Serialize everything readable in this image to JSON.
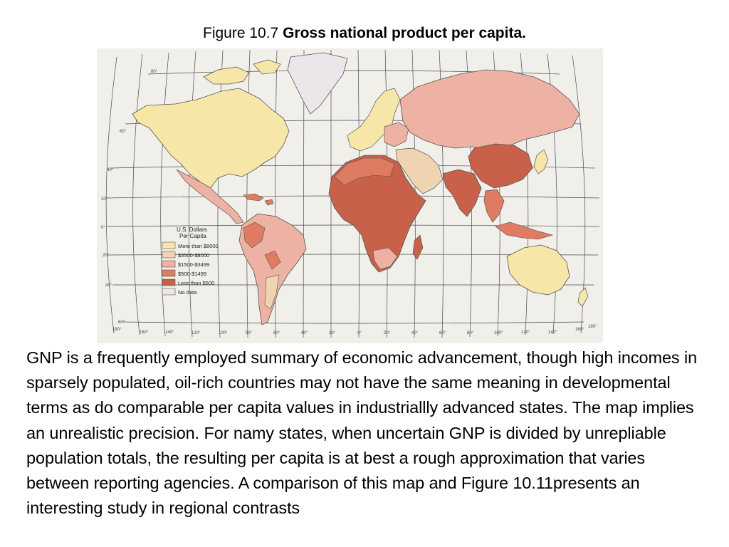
{
  "figure": {
    "prefix": "Figure 10.7",
    "title": "Gross national product per capita."
  },
  "map": {
    "legend": {
      "title_line1": "U.S. Dollars",
      "title_line2": "Per Capita",
      "items": [
        {
          "label": "More than $8000",
          "color": "#f6e6a8"
        },
        {
          "label": "$3500-$8000",
          "color": "#f0d3b0"
        },
        {
          "label": "$1500-$3499",
          "color": "#eeb2a4"
        },
        {
          "label": "$500-$1499",
          "color": "#df7a63"
        },
        {
          "label": "Less than $500",
          "color": "#c9614a"
        },
        {
          "label": "No data",
          "color": "#ebe6ea"
        }
      ]
    },
    "lat_labels": [
      "80°",
      "60°",
      "40°",
      "20°",
      "0°",
      "20°",
      "40°",
      "60°"
    ],
    "lon_labels": [
      "180°",
      "160°",
      "140°",
      "120°",
      "100°",
      "80°",
      "60°",
      "40°",
      "20°",
      "0°",
      "20°",
      "40°",
      "60°",
      "80°",
      "100°",
      "120°",
      "140°",
      "160°",
      "180°"
    ]
  },
  "body": {
    "paragraph": "GNP is a frequently employed summary of economic advancement, though high incomes in sparsely populated, oil-rich countries may not have the same meaning in developmental terms as do comparable per capita values in industriallly advanced states. The map implies an unrealistic precision. For namy states, when uncertain GNP is divided by unrepliable population totals, the resulting per capita is at best a rough approximation that varies between reporting agencies. A comparison of this map and Figure 10.11presents an interesting study in regional contrasts"
  }
}
